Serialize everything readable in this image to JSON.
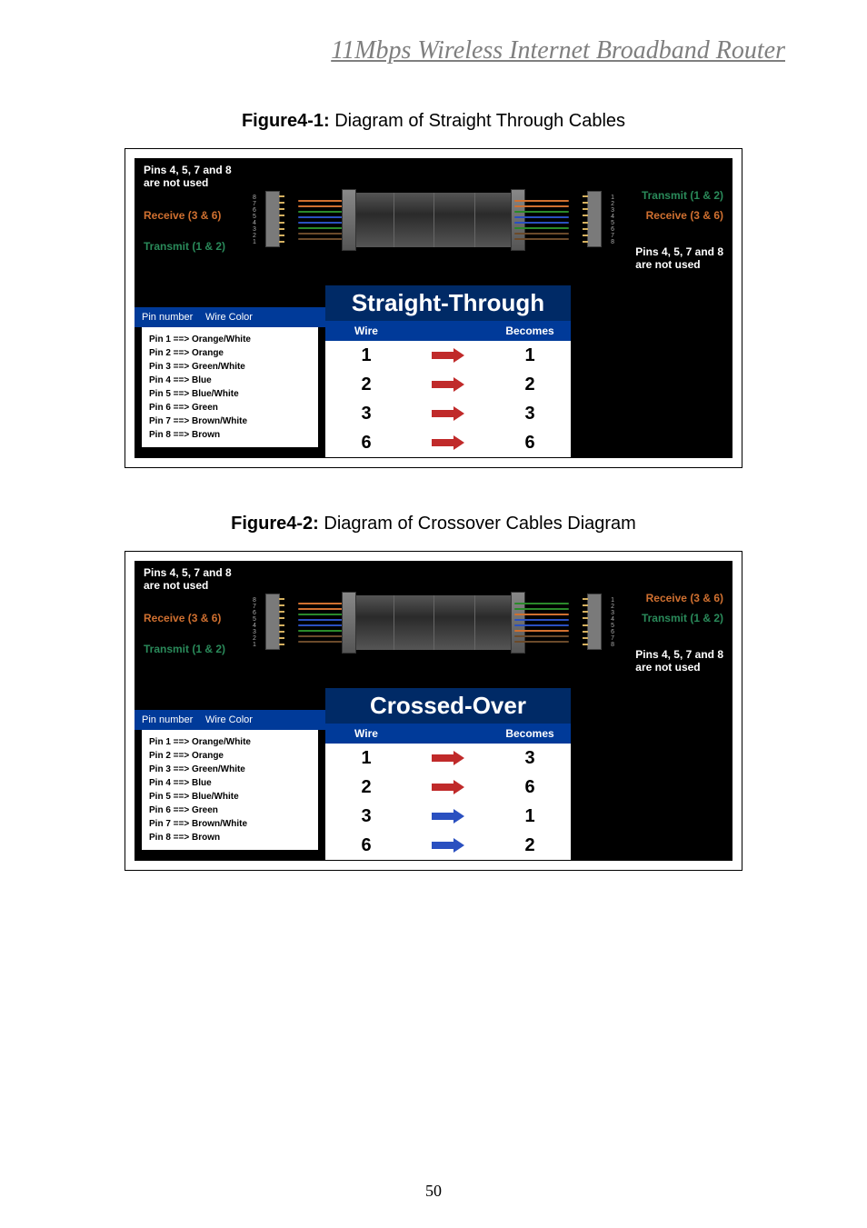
{
  "header": {
    "title": "11Mbps  Wireless  Internet  Broadband  Router"
  },
  "page_number": "50",
  "pin_wire_list": [
    "Pin 1 ==> Orange/White",
    "Pin 2 ==> Orange",
    "Pin 3 ==> Green/White",
    "Pin 4 ==> Blue",
    "Pin 5 ==> Blue/White",
    "Pin 6 ==> Green",
    "Pin 7 ==> Brown/White",
    "Pin 8 ==> Brown"
  ],
  "pin_header": {
    "col1": "Pin number",
    "col2": "Wire Color"
  },
  "table_header": {
    "wire": "Wire",
    "becomes": "Becomes"
  },
  "wire_colors": [
    "#d07030",
    "#d07030",
    "#2a8a2a",
    "#2a50c0",
    "#2a50c0",
    "#2a8a2a",
    "#6b4a2a",
    "#6b4a2a"
  ],
  "wire_colors_cross_right": [
    "#2a8a2a",
    "#2a8a2a",
    "#d07030",
    "#2a50c0",
    "#2a50c0",
    "#d07030",
    "#6b4a2a",
    "#6b4a2a"
  ],
  "figure1": {
    "caption_bold": "Figure4-1:",
    "caption_rest": " Diagram of Straight Through Cables",
    "section_title": "Straight-Through",
    "left_labels": {
      "pins": "Pins 4, 5, 7 and 8\nare not used",
      "receive": "Receive (3 & 6)",
      "transmit": "Transmit (1 & 2)"
    },
    "right_labels": {
      "transmit": "Transmit (1 & 2)",
      "receive": "Receive (3 & 6)",
      "pins": "Pins 4, 5, 7 and 8\nare not used"
    },
    "label_colors": {
      "receive": "#d07030",
      "transmit": "#2a8a5a"
    },
    "rows": [
      {
        "wire": "1",
        "becomes": "1",
        "color": "#c02a2a"
      },
      {
        "wire": "2",
        "becomes": "2",
        "color": "#c02a2a"
      },
      {
        "wire": "3",
        "becomes": "3",
        "color": "#c02a2a"
      },
      {
        "wire": "6",
        "becomes": "6",
        "color": "#c02a2a"
      }
    ]
  },
  "figure2": {
    "caption_bold": "Figure4-2:",
    "caption_rest": " Diagram of Crossover Cables Diagram",
    "section_title": "Crossed-Over",
    "left_labels": {
      "pins": "Pins 4, 5, 7 and 8\nare not used",
      "receive": "Receive (3 & 6)",
      "transmit": "Transmit (1 & 2)"
    },
    "right_labels": {
      "receive": "Receive (3 & 6)",
      "transmit": "Transmit (1 & 2)",
      "pins": "Pins 4, 5, 7 and 8\nare not used"
    },
    "label_colors": {
      "receive": "#d07030",
      "transmit": "#2a8a5a"
    },
    "rows": [
      {
        "wire": "1",
        "becomes": "3",
        "color": "#c02a2a"
      },
      {
        "wire": "2",
        "becomes": "6",
        "color": "#c02a2a"
      },
      {
        "wire": "3",
        "becomes": "1",
        "color": "#2a50c0"
      },
      {
        "wire": "6",
        "becomes": "2",
        "color": "#2a50c0"
      }
    ]
  }
}
